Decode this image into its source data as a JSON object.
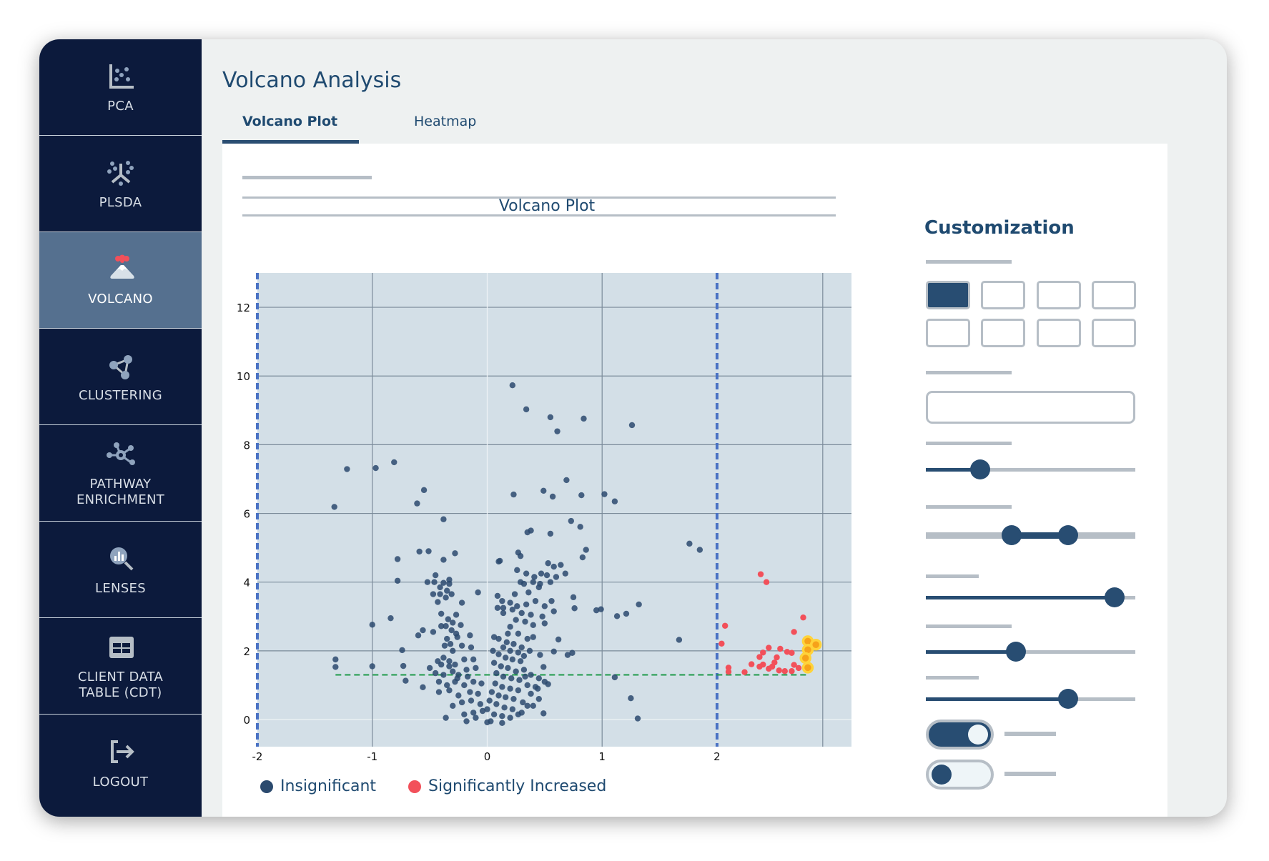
{
  "sidebar": {
    "items": [
      {
        "label": "PCA",
        "icon": "scatter-plot-icon",
        "active": false
      },
      {
        "label": "PLSDA",
        "icon": "plsda-icon",
        "active": false
      },
      {
        "label": "VOLCANO",
        "icon": "volcano-icon",
        "active": true
      },
      {
        "label": "CLUSTERING",
        "icon": "clustering-icon",
        "active": false
      },
      {
        "label": "PATHWAY\nENRICHMENT",
        "icon": "network-icon",
        "active": false
      },
      {
        "label": "LENSES",
        "icon": "magnifier-chart-icon",
        "active": false
      },
      {
        "label": "CLIENT DATA\nTABLE (CDT)",
        "icon": "table-icon",
        "active": false
      },
      {
        "label": "LOGOUT",
        "icon": "logout-icon",
        "active": false
      }
    ]
  },
  "header": {
    "title": "Volcano Analysis"
  },
  "tabs": [
    {
      "label": "Volcano Plot",
      "active": true
    },
    {
      "label": "Heatmap",
      "active": false
    }
  ],
  "customization": {
    "title": "Customization",
    "selected_swatch": 0,
    "text_value": "",
    "sliders": [
      0.26,
      0.9,
      0.43,
      0.68
    ],
    "range_slider": [
      0.41,
      0.68
    ],
    "toggles": [
      true,
      false
    ]
  },
  "colors": {
    "insignificant": "#2b4a6e",
    "significant": "#f2505a",
    "highlight_fill": "#f6a21a",
    "highlight_ring": "#ffd33a",
    "fold_change_threshold": "#4a72c4",
    "pvalue_threshold": "#1e9a4a",
    "plot_background": "#d3dfe7",
    "sidebar": "#0c1a3c",
    "sidebar_active": "#55708f",
    "accent": "#284d72"
  },
  "chart_data": {
    "type": "scatter",
    "title": "Volcano Plot",
    "xlabel": "",
    "ylabel": "",
    "xlim": [
      -2,
      3.17
    ],
    "ylim": [
      -0.79,
      13
    ],
    "x_ticks": [
      "-2",
      "-1",
      "0",
      "1",
      "2"
    ],
    "y_ticks": [
      "0",
      "2",
      "4",
      "6",
      "8",
      "10",
      "12"
    ],
    "grid": true,
    "thresholds": {
      "x": [
        -2,
        2
      ],
      "y": 1.3,
      "y_line_x_range": [
        -1.32,
        2.8
      ]
    },
    "legend": {
      "placement": "bottom-left",
      "entries": [
        "Insignificant",
        "Significantly Increased"
      ]
    },
    "series": [
      {
        "name": "Insignificant",
        "points": [
          [
            0.22,
            9.73
          ],
          [
            0.34,
            9.03
          ],
          [
            0.55,
            8.8
          ],
          [
            0.84,
            8.76
          ],
          [
            0.61,
            8.39
          ],
          [
            1.26,
            8.57
          ],
          [
            -1.22,
            7.29
          ],
          [
            -0.97,
            7.32
          ],
          [
            -0.81,
            7.49
          ],
          [
            -1.33,
            6.19
          ],
          [
            -0.55,
            6.68
          ],
          [
            -0.61,
            6.29
          ],
          [
            0.69,
            6.97
          ],
          [
            0.23,
            6.55
          ],
          [
            0.49,
            6.66
          ],
          [
            0.57,
            6.49
          ],
          [
            0.82,
            6.53
          ],
          [
            1.02,
            6.56
          ],
          [
            1.11,
            6.35
          ],
          [
            -0.38,
            5.83
          ],
          [
            0.73,
            5.78
          ],
          [
            0.81,
            5.61
          ],
          [
            0.35,
            5.45
          ],
          [
            0.38,
            5.5
          ],
          [
            0.55,
            5.41
          ],
          [
            1.76,
            5.12
          ],
          [
            1.85,
            4.94
          ],
          [
            -0.59,
            4.89
          ],
          [
            -0.51,
            4.9
          ],
          [
            -0.28,
            4.84
          ],
          [
            -0.78,
            4.67
          ],
          [
            -0.38,
            4.65
          ],
          [
            0.86,
            4.94
          ],
          [
            0.83,
            4.72
          ],
          [
            0.27,
            4.86
          ],
          [
            0.29,
            4.76
          ],
          [
            0.11,
            4.62
          ],
          [
            -0.78,
            4.04
          ],
          [
            -0.08,
            3.7
          ],
          [
            -0.22,
            3.4
          ],
          [
            -0.84,
            2.95
          ],
          [
            -1.0,
            2.76
          ],
          [
            -0.74,
            2.02
          ],
          [
            -1.32,
            1.75
          ],
          [
            -1.32,
            1.53
          ],
          [
            -1.0,
            1.55
          ],
          [
            -0.73,
            1.56
          ],
          [
            -0.71,
            1.13
          ],
          [
            -0.56,
            0.94
          ],
          [
            -0.36,
            0.05
          ],
          [
            0.75,
            3.56
          ],
          [
            0.76,
            3.24
          ],
          [
            0.95,
            3.18
          ],
          [
            0.99,
            3.21
          ],
          [
            1.13,
            3.01
          ],
          [
            1.21,
            3.08
          ],
          [
            1.32,
            3.35
          ],
          [
            1.67,
            2.32
          ],
          [
            1.11,
            1.23
          ],
          [
            1.25,
            0.62
          ],
          [
            1.31,
            0.03
          ],
          [
            0.62,
            2.33
          ],
          [
            0.58,
            1.98
          ],
          [
            0.7,
            1.88
          ],
          [
            0.74,
            1.94
          ],
          [
            0.49,
            1.53
          ],
          [
            0.53,
            1.03
          ],
          [
            0.49,
            0.18
          ],
          [
            0.46,
            1.88
          ],
          [
            -0.45,
            4.2
          ],
          [
            -0.52,
            4.0
          ],
          [
            -0.46,
            4.0
          ],
          [
            -0.38,
            3.98
          ],
          [
            -0.33,
            4.07
          ],
          [
            -0.33,
            3.95
          ],
          [
            -0.41,
            3.85
          ],
          [
            -0.35,
            3.75
          ],
          [
            -0.47,
            3.65
          ],
          [
            -0.41,
            3.65
          ],
          [
            -0.36,
            3.55
          ],
          [
            -0.31,
            3.65
          ],
          [
            -0.43,
            3.42
          ],
          [
            -0.27,
            3.05
          ],
          [
            -0.4,
            3.08
          ],
          [
            -0.34,
            2.92
          ],
          [
            -0.3,
            2.82
          ],
          [
            -0.4,
            2.72
          ],
          [
            -0.36,
            2.72
          ],
          [
            -0.23,
            2.75
          ],
          [
            -0.31,
            2.6
          ],
          [
            -0.47,
            2.55
          ],
          [
            -0.56,
            2.6
          ],
          [
            -0.6,
            2.45
          ],
          [
            -0.27,
            2.5
          ],
          [
            -0.35,
            2.35
          ],
          [
            -0.26,
            2.4
          ],
          [
            -0.15,
            2.45
          ],
          [
            -0.32,
            2.2
          ],
          [
            -0.37,
            2.15
          ],
          [
            -0.22,
            2.15
          ],
          [
            -0.14,
            2.1
          ],
          [
            -0.3,
            2.0
          ],
          [
            -0.43,
            1.7
          ],
          [
            -0.38,
            1.8
          ],
          [
            -0.33,
            1.7
          ],
          [
            -0.28,
            1.6
          ],
          [
            -0.2,
            1.75
          ],
          [
            -0.12,
            1.75
          ],
          [
            -0.4,
            1.6
          ],
          [
            -0.5,
            1.5
          ],
          [
            -0.45,
            1.35
          ],
          [
            -0.38,
            1.3
          ],
          [
            -0.3,
            1.4
          ],
          [
            -0.25,
            1.3
          ],
          [
            -0.18,
            1.45
          ],
          [
            -0.1,
            1.5
          ],
          [
            -0.42,
            1.1
          ],
          [
            -0.35,
            1.0
          ],
          [
            -0.28,
            1.1
          ],
          [
            -0.2,
            1.0
          ],
          [
            -0.12,
            1.1
          ],
          [
            -0.05,
            1.05
          ],
          [
            -0.42,
            0.8
          ],
          [
            -0.33,
            0.85
          ],
          [
            -0.25,
            0.7
          ],
          [
            -0.15,
            0.8
          ],
          [
            -0.08,
            0.75
          ],
          [
            -0.3,
            0.4
          ],
          [
            -0.22,
            0.5
          ],
          [
            -0.14,
            0.55
          ],
          [
            -0.06,
            0.45
          ],
          [
            -0.2,
            0.15
          ],
          [
            -0.12,
            0.2
          ],
          [
            -0.04,
            0.25
          ],
          [
            -0.18,
            -0.05
          ],
          [
            -0.1,
            0.05
          ],
          [
            -0.26,
            1.2
          ],
          [
            -0.17,
            1.25
          ],
          [
            -0.33,
            1.55
          ],
          [
            0.1,
            4.6
          ],
          [
            0.26,
            4.35
          ],
          [
            0.34,
            4.25
          ],
          [
            0.41,
            4.15
          ],
          [
            0.47,
            4.25
          ],
          [
            0.52,
            4.2
          ],
          [
            0.58,
            4.45
          ],
          [
            0.64,
            4.5
          ],
          [
            0.68,
            4.25
          ],
          [
            0.6,
            4.15
          ],
          [
            0.53,
            4.55
          ],
          [
            0.29,
            4.0
          ],
          [
            0.32,
            3.95
          ],
          [
            0.4,
            4.0
          ],
          [
            0.46,
            3.95
          ],
          [
            0.55,
            4.0
          ],
          [
            0.45,
            3.85
          ],
          [
            0.36,
            3.7
          ],
          [
            0.24,
            3.65
          ],
          [
            0.09,
            3.6
          ],
          [
            0.13,
            3.45
          ],
          [
            0.2,
            3.4
          ],
          [
            0.26,
            3.3
          ],
          [
            0.34,
            3.35
          ],
          [
            0.42,
            3.45
          ],
          [
            0.5,
            3.3
          ],
          [
            0.56,
            3.45
          ],
          [
            0.58,
            3.15
          ],
          [
            0.48,
            3.0
          ],
          [
            0.38,
            3.05
          ],
          [
            0.3,
            3.1
          ],
          [
            0.22,
            3.2
          ],
          [
            0.14,
            3.25
          ],
          [
            0.09,
            3.25
          ],
          [
            0.14,
            3.1
          ],
          [
            0.25,
            2.9
          ],
          [
            0.33,
            2.85
          ],
          [
            0.4,
            2.75
          ],
          [
            0.5,
            2.8
          ],
          [
            0.2,
            2.7
          ],
          [
            0.18,
            2.5
          ],
          [
            0.27,
            2.5
          ],
          [
            0.35,
            2.35
          ],
          [
            0.4,
            2.4
          ],
          [
            0.06,
            2.4
          ],
          [
            0.1,
            2.35
          ],
          [
            0.17,
            2.25
          ],
          [
            0.23,
            2.2
          ],
          [
            0.3,
            2.1
          ],
          [
            0.37,
            2.0
          ],
          [
            0.14,
            2.1
          ],
          [
            0.2,
            2.0
          ],
          [
            0.27,
            1.95
          ],
          [
            0.32,
            1.85
          ],
          [
            0.05,
            2.0
          ],
          [
            0.1,
            1.9
          ],
          [
            0.16,
            1.8
          ],
          [
            0.22,
            1.75
          ],
          [
            0.29,
            1.7
          ],
          [
            0.06,
            1.65
          ],
          [
            0.12,
            1.55
          ],
          [
            0.18,
            1.5
          ],
          [
            0.25,
            1.4
          ],
          [
            0.32,
            1.45
          ],
          [
            0.38,
            1.3
          ],
          [
            0.08,
            1.35
          ],
          [
            0.14,
            1.25
          ],
          [
            0.21,
            1.2
          ],
          [
            0.28,
            1.15
          ],
          [
            0.35,
            1.0
          ],
          [
            0.42,
            0.95
          ],
          [
            0.07,
            1.05
          ],
          [
            0.13,
            0.95
          ],
          [
            0.2,
            0.9
          ],
          [
            0.27,
            0.85
          ],
          [
            0.38,
            0.75
          ],
          [
            0.04,
            0.8
          ],
          [
            0.1,
            0.7
          ],
          [
            0.16,
            0.65
          ],
          [
            0.23,
            0.6
          ],
          [
            0.31,
            0.5
          ],
          [
            0.4,
            0.4
          ],
          [
            0.02,
            0.55
          ],
          [
            0.08,
            0.45
          ],
          [
            0.15,
            0.35
          ],
          [
            0.22,
            0.3
          ],
          [
            0.3,
            0.2
          ],
          [
            0.0,
            0.3
          ],
          [
            0.06,
            0.15
          ],
          [
            0.13,
            0.1
          ],
          [
            0.2,
            0.05
          ],
          [
            0.27,
            0.15
          ],
          [
            0.03,
            -0.05
          ],
          [
            0.13,
            -0.1
          ],
          [
            0.35,
            0.4
          ],
          [
            0.45,
            0.6
          ],
          [
            0.44,
            0.9
          ],
          [
            0.33,
            1.25
          ],
          [
            0.45,
            1.2
          ],
          [
            0.5,
            1.1
          ],
          [
            0.0,
            -0.08
          ]
        ]
      },
      {
        "name": "Significantly Increased",
        "points": [
          [
            2.04,
            2.21
          ],
          [
            2.07,
            2.73
          ],
          [
            2.1,
            1.51
          ],
          [
            2.1,
            1.39
          ],
          [
            2.24,
            1.38
          ],
          [
            2.3,
            1.61
          ],
          [
            2.38,
            4.23
          ],
          [
            2.43,
            4.0
          ],
          [
            2.37,
            1.82
          ],
          [
            2.4,
            1.95
          ],
          [
            2.45,
            2.09
          ],
          [
            2.55,
            2.06
          ],
          [
            2.61,
            1.97
          ],
          [
            2.65,
            1.94
          ],
          [
            2.52,
            1.81
          ],
          [
            2.5,
            1.66
          ],
          [
            2.48,
            1.54
          ],
          [
            2.45,
            1.48
          ],
          [
            2.4,
            1.6
          ],
          [
            2.37,
            1.54
          ],
          [
            2.54,
            1.43
          ],
          [
            2.59,
            1.41
          ],
          [
            2.65,
            1.41
          ],
          [
            2.67,
            1.59
          ],
          [
            2.71,
            1.5
          ],
          [
            2.67,
            2.55
          ],
          [
            2.75,
            2.97
          ]
        ]
      },
      {
        "highlighted": true,
        "points": [
          [
            2.79,
            2.28
          ],
          [
            2.86,
            2.18
          ],
          [
            2.79,
            2.03
          ],
          [
            2.77,
            1.79
          ],
          [
            2.79,
            1.51
          ]
        ]
      }
    ]
  }
}
